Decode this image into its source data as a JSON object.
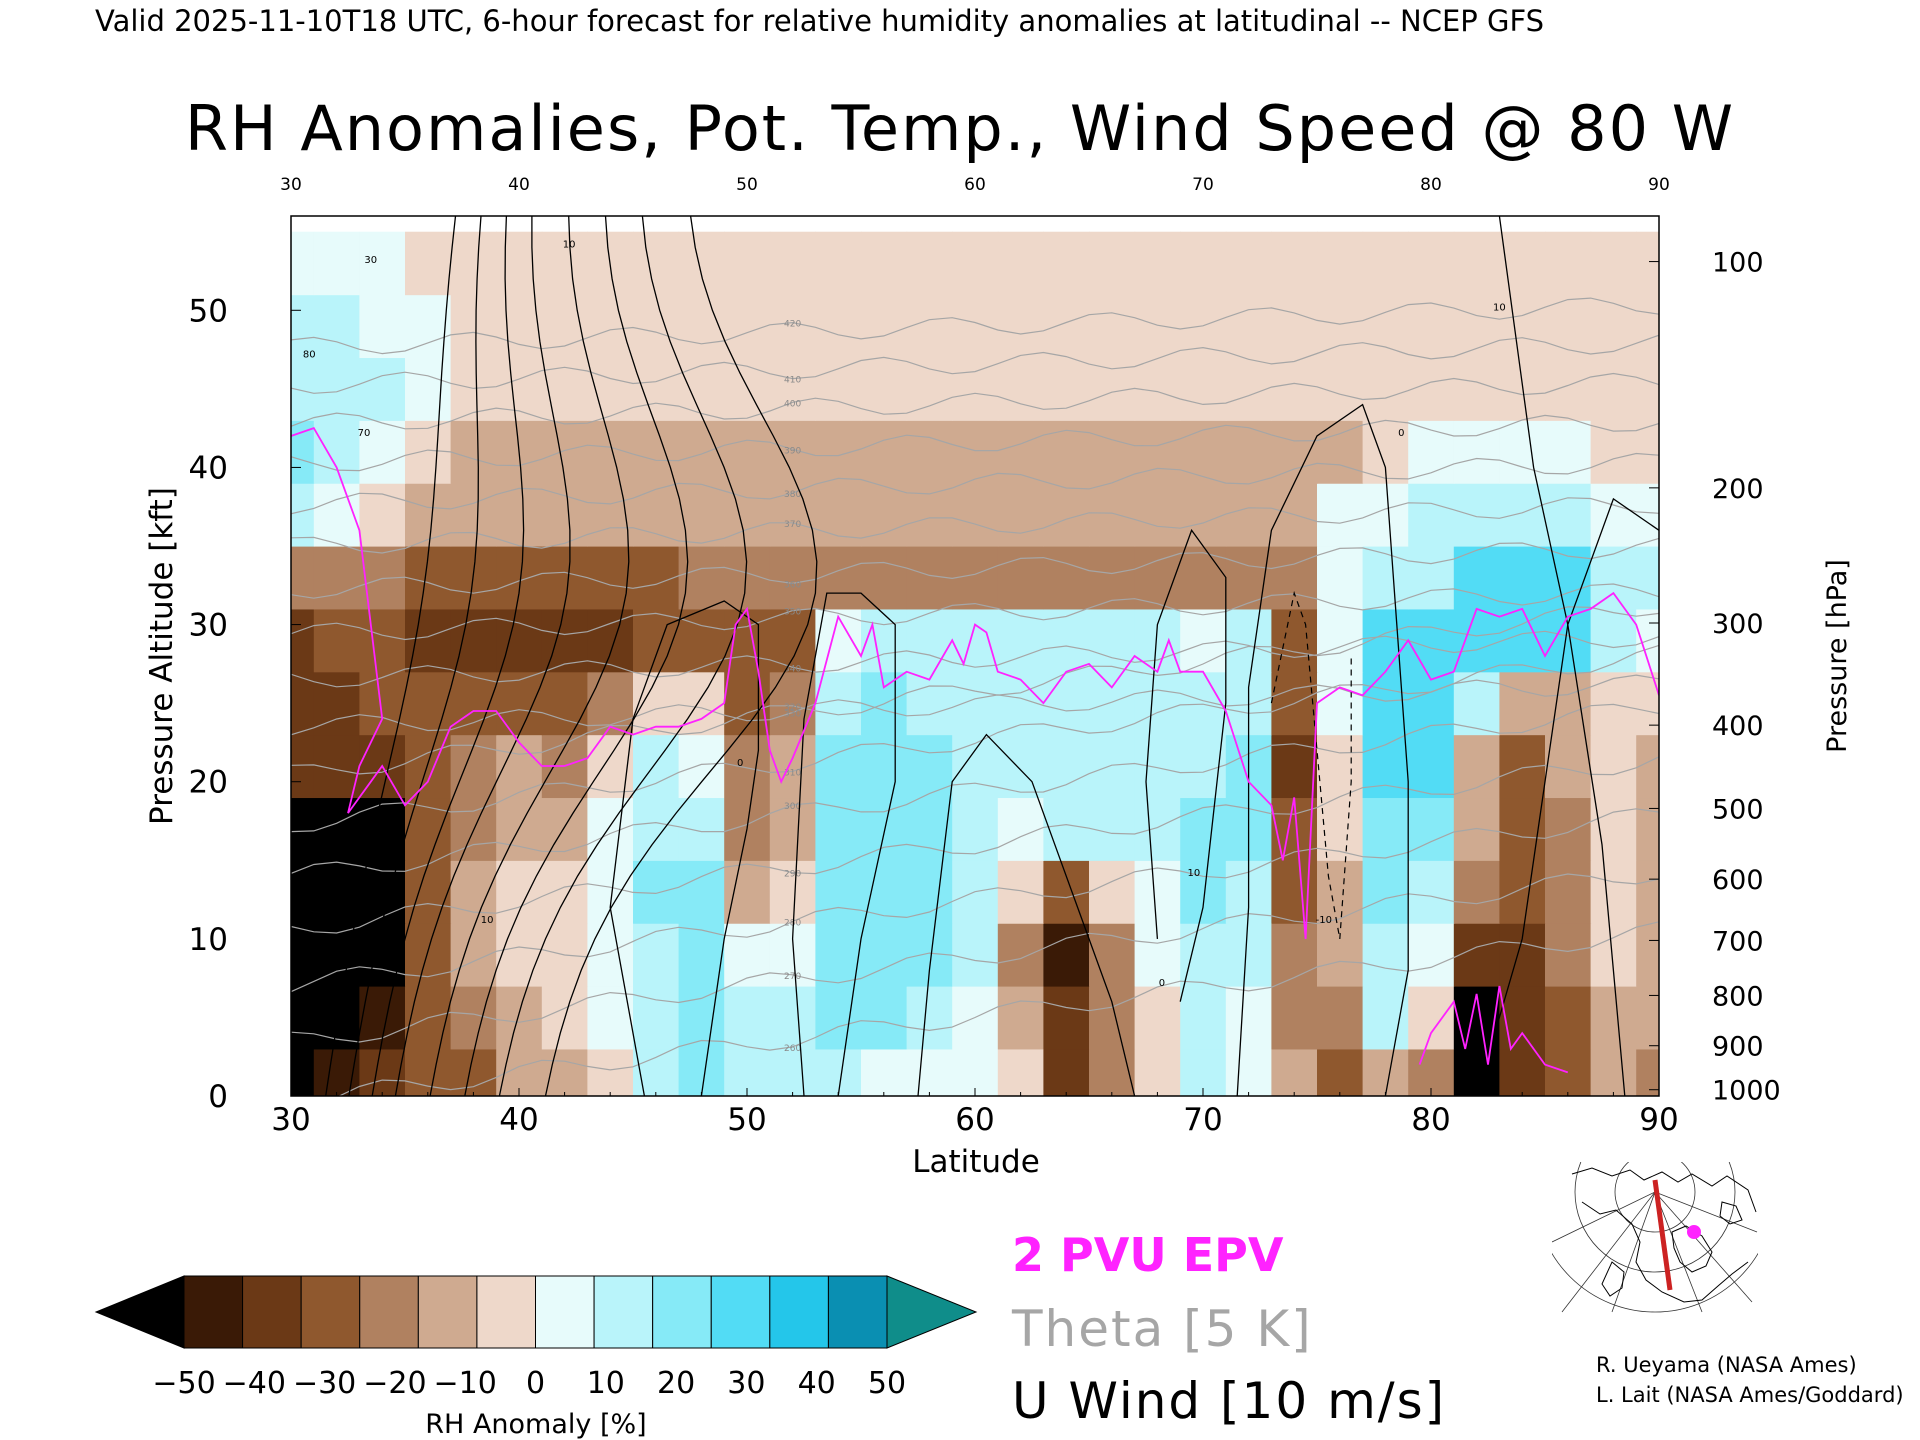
{
  "header": {
    "valid_line": "Valid 2025-11-10T18 UTC, 6-hour forecast for relative humidity anomalies at latitudinal -- NCEP GFS",
    "title": "RH Anomalies, Pot. Temp., Wind Speed @ 80 W"
  },
  "chart_data": {
    "type": "heatmap",
    "title": "RH Anomalies, Pot. Temp., Wind Speed @ 80 W",
    "xlabel": "Latitude",
    "ylabel_left": "Pressure Altitude [kft]",
    "ylabel_right": "Pressure [hPa]",
    "xlim": [
      30,
      90
    ],
    "ylim_kft": [
      0,
      56
    ],
    "x_ticks": [
      30,
      40,
      50,
      60,
      70,
      80,
      90
    ],
    "y_ticks_kft": [
      0,
      10,
      20,
      30,
      40,
      50
    ],
    "pressure_ticks": [
      {
        "label": "100",
        "kft": 53.1
      },
      {
        "label": "200",
        "kft": 38.7
      },
      {
        "label": "300",
        "kft": 30.1
      },
      {
        "label": "400",
        "kft": 23.6
      },
      {
        "label": "500",
        "kft": 18.3
      },
      {
        "label": "600",
        "kft": 13.8
      },
      {
        "label": "700",
        "kft": 9.9
      },
      {
        "label": "800",
        "kft": 6.4
      },
      {
        "label": "900",
        "kft": 3.2
      },
      {
        "label": "1000",
        "kft": 0.4
      }
    ],
    "theta_levels": [
      260,
      270,
      280,
      290,
      300,
      310,
      320,
      330,
      340,
      350,
      360,
      370,
      380,
      390,
      400,
      410,
      420
    ],
    "rh_anomaly_colorbar": {
      "label": "RH Anomaly [%]",
      "tick_labels": [
        "-50",
        "-40",
        "-30",
        "-20",
        "-10",
        "0",
        "10",
        "20",
        "30",
        "40",
        "50"
      ],
      "colors": [
        "#000000",
        "#3a1a06",
        "#6b3916",
        "#8f582e",
        "#b08160",
        "#cfaa90",
        "#eed8ca",
        "#e7fbfb",
        "#b9f4fa",
        "#86eaf7",
        "#52dcf5",
        "#24c6ea",
        "#0a8fb2",
        "#0f8d8a"
      ]
    },
    "rh_anomaly_grid": {
      "lats": [
        30,
        32,
        34,
        36,
        38,
        40,
        42,
        44,
        46,
        48,
        50,
        52,
        54,
        56,
        58,
        60,
        62,
        64,
        66,
        68,
        70,
        72,
        74,
        76,
        78,
        80,
        82,
        84,
        86,
        88,
        90
      ],
      "kft": [
        1,
        5,
        9,
        13,
        17,
        21,
        25,
        29,
        33,
        37,
        41,
        45,
        49,
        53
      ],
      "values": [
        [
          -60,
          -45,
          -40,
          -30,
          -30,
          -10,
          -5,
          5,
          20,
          30,
          25,
          25,
          20,
          10,
          15,
          10,
          0,
          -35,
          -15,
          0,
          25,
          10,
          -10,
          -25,
          -5,
          -20,
          -55,
          -40,
          -30,
          -5,
          -20
        ],
        [
          -60,
          -50,
          -45,
          -30,
          -20,
          -5,
          0,
          10,
          25,
          30,
          20,
          20,
          30,
          35,
          25,
          15,
          -10,
          -40,
          -15,
          5,
          20,
          15,
          -15,
          -20,
          20,
          0,
          -50,
          -35,
          -25,
          -5,
          -10
        ],
        [
          -60,
          -55,
          -50,
          -30,
          -10,
          5,
          5,
          15,
          25,
          35,
          10,
          10,
          30,
          35,
          30,
          20,
          -15,
          -45,
          -20,
          10,
          25,
          20,
          -20,
          -10,
          25,
          10,
          -40,
          -35,
          -20,
          0,
          -10
        ],
        [
          -60,
          -60,
          -55,
          -30,
          -10,
          0,
          5,
          15,
          30,
          30,
          -5,
          0,
          30,
          35,
          30,
          20,
          0,
          -30,
          5,
          15,
          30,
          25,
          -25,
          -5,
          30,
          20,
          -20,
          -30,
          -15,
          0,
          -5
        ],
        [
          -60,
          -60,
          -60,
          -30,
          -15,
          -5,
          -10,
          10,
          25,
          25,
          -15,
          -5,
          30,
          35,
          30,
          25,
          15,
          20,
          25,
          20,
          30,
          30,
          -30,
          0,
          35,
          30,
          -10,
          -25,
          -15,
          0,
          -5
        ],
        [
          -40,
          -40,
          -35,
          -25,
          -15,
          -10,
          -20,
          5,
          20,
          15,
          -20,
          -10,
          30,
          30,
          30,
          25,
          20,
          25,
          25,
          25,
          25,
          30,
          -35,
          5,
          40,
          40,
          -5,
          -25,
          -10,
          0,
          -5
        ],
        [
          -35,
          -35,
          -30,
          -25,
          -25,
          -25,
          -30,
          -15,
          5,
          0,
          -25,
          -15,
          25,
          30,
          25,
          25,
          25,
          25,
          25,
          25,
          20,
          25,
          -30,
          10,
          45,
          45,
          20,
          -5,
          -5,
          0,
          0
        ],
        [
          -35,
          -30,
          -30,
          -35,
          -35,
          -35,
          -40,
          -35,
          -30,
          -25,
          -30,
          -25,
          15,
          20,
          25,
          20,
          20,
          20,
          20,
          20,
          15,
          20,
          -25,
          15,
          45,
          45,
          45,
          45,
          40,
          20,
          10
        ],
        [
          -15,
          -20,
          -20,
          -25,
          -25,
          -25,
          -25,
          -25,
          -25,
          -20,
          -20,
          -20,
          -20,
          -15,
          -15,
          -15,
          -15,
          -15,
          -15,
          -15,
          -15,
          -15,
          -15,
          15,
          20,
          25,
          45,
          45,
          45,
          25,
          20
        ],
        [
          25,
          10,
          0,
          -5,
          -5,
          -10,
          -10,
          -10,
          -10,
          -10,
          -10,
          -10,
          -10,
          -10,
          -10,
          -10,
          -10,
          -10,
          -10,
          -10,
          -10,
          -10,
          -10,
          10,
          15,
          20,
          25,
          20,
          20,
          15,
          10
        ],
        [
          30,
          25,
          15,
          5,
          -5,
          -5,
          -5,
          -5,
          -5,
          -5,
          -5,
          -5,
          -5,
          -5,
          -5,
          -5,
          -5,
          -5,
          -5,
          -5,
          -5,
          -5,
          -5,
          -5,
          5,
          15,
          15,
          10,
          10,
          5,
          5
        ],
        [
          25,
          25,
          20,
          10,
          5,
          0,
          0,
          0,
          0,
          0,
          0,
          0,
          0,
          0,
          0,
          0,
          0,
          0,
          0,
          0,
          0,
          0,
          0,
          0,
          0,
          5,
          5,
          5,
          5,
          5,
          5
        ],
        [
          20,
          20,
          15,
          10,
          5,
          5,
          5,
          5,
          5,
          5,
          5,
          5,
          5,
          5,
          5,
          5,
          5,
          5,
          5,
          5,
          5,
          5,
          5,
          5,
          5,
          5,
          5,
          5,
          5,
          5,
          5
        ],
        [
          10,
          10,
          10,
          5,
          5,
          5,
          5,
          5,
          5,
          5,
          5,
          5,
          5,
          5,
          5,
          5,
          5,
          5,
          5,
          5,
          5,
          5,
          5,
          5,
          5,
          5,
          5,
          5,
          5,
          5,
          5
        ]
      ]
    },
    "epv_2pvu_line": [
      [
        30,
        42
      ],
      [
        31,
        42.5
      ],
      [
        32,
        40
      ],
      [
        33,
        36
      ],
      [
        33.5,
        30
      ],
      [
        34,
        24
      ],
      [
        33,
        21
      ],
      [
        32.5,
        18
      ],
      [
        33.5,
        20
      ],
      [
        34,
        21
      ],
      [
        35,
        18.5
      ],
      [
        36,
        20
      ],
      [
        37,
        23.5
      ],
      [
        38,
        24.5
      ],
      [
        39,
        24.5
      ],
      [
        40,
        22.5
      ],
      [
        41,
        21
      ],
      [
        42,
        21
      ],
      [
        43,
        21.5
      ],
      [
        44,
        23.5
      ],
      [
        45,
        23
      ],
      [
        46,
        23.5
      ],
      [
        47,
        23.5
      ],
      [
        48,
        24
      ],
      [
        49,
        25
      ],
      [
        49.5,
        30
      ],
      [
        50,
        31
      ],
      [
        50.5,
        27
      ],
      [
        51,
        22
      ],
      [
        51.5,
        20
      ],
      [
        52,
        21.5
      ],
      [
        53,
        25
      ],
      [
        54,
        30.5
      ],
      [
        55,
        28
      ],
      [
        55.5,
        30
      ],
      [
        56,
        26
      ],
      [
        57,
        27
      ],
      [
        58,
        26.5
      ],
      [
        59,
        29
      ],
      [
        59.5,
        27.5
      ],
      [
        60,
        30
      ],
      [
        60.5,
        29.5
      ],
      [
        61,
        27
      ],
      [
        62,
        26.5
      ],
      [
        63,
        25
      ],
      [
        64,
        27
      ],
      [
        65,
        27.5
      ],
      [
        66,
        26
      ],
      [
        67,
        28
      ],
      [
        68,
        27
      ],
      [
        68.5,
        29
      ],
      [
        69,
        27
      ],
      [
        70,
        27
      ],
      [
        71,
        24.5
      ],
      [
        72,
        20
      ],
      [
        73,
        18.5
      ],
      [
        73.5,
        15
      ],
      [
        74,
        19
      ],
      [
        74.5,
        10
      ],
      [
        75,
        25
      ],
      [
        76,
        26
      ],
      [
        77,
        25.5
      ],
      [
        78,
        27
      ],
      [
        79,
        29
      ],
      [
        80,
        26.5
      ],
      [
        81,
        27
      ],
      [
        82,
        31
      ],
      [
        83,
        30.5
      ],
      [
        84,
        31
      ],
      [
        85,
        28
      ],
      [
        86,
        30.5
      ],
      [
        87,
        31
      ],
      [
        88,
        32
      ],
      [
        89,
        30
      ],
      [
        90,
        25.5
      ]
    ],
    "epv_2pvu_line_lower": [
      [
        79.5,
        2
      ],
      [
        80,
        4
      ],
      [
        81,
        6
      ],
      [
        81.5,
        3
      ],
      [
        82,
        6.5
      ],
      [
        82.5,
        2
      ],
      [
        83,
        7
      ],
      [
        83.5,
        3
      ],
      [
        84,
        4
      ],
      [
        85,
        2
      ],
      [
        86,
        1.5
      ]
    ],
    "u_wind_contour_labels": [
      "-10",
      "0",
      "10",
      "20",
      "30",
      "40",
      "50",
      "60",
      "70",
      "80"
    ],
    "theta_color": "#a6a6a6",
    "epv_color": "#ff22ff"
  },
  "legend": {
    "epv": "2 PVU EPV",
    "theta": "Theta [5 K]",
    "wind": "U Wind [10 m/s]"
  },
  "credits": {
    "line1": "R. Ueyama (NASA Ames)",
    "line2": "L. Lait (NASA Ames/Goddard)"
  },
  "map_inset": {
    "cross_section_color": "#cc2222",
    "marker_color": "#ff22ff"
  }
}
